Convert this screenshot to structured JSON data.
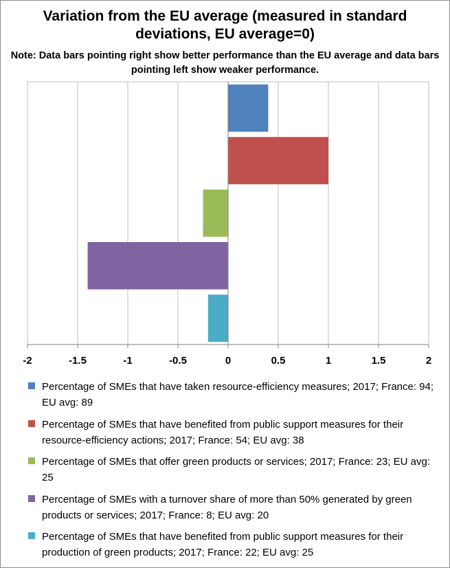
{
  "chart_data": {
    "type": "bar",
    "orientation": "horizontal",
    "title": "Variation from the EU average (measured in standard deviations, EU average=0)",
    "subtitle": "Note: Data bars pointing right show better performance than the EU average and data bars pointing left show weaker performance.",
    "xlim": [
      -2,
      2
    ],
    "x_ticks": [
      "-2",
      "-1.5",
      "-1",
      "-0.5",
      "0",
      "0.5",
      "1",
      "1.5",
      "2"
    ],
    "grid": "vertical",
    "legend_position": "bottom",
    "series": [
      {
        "name": "Percentage of SMEs that have taken resource-efficiency measures; 2017; France: 94; EU avg: 89",
        "value": 0.4,
        "color": "#4f81bd"
      },
      {
        "name": "Percentage of SMEs that have benefited from public support measures for their resource-efficiency actions; 2017; France: 54; EU avg: 38",
        "value": 1.0,
        "color": "#c0504d"
      },
      {
        "name": "Percentage of SMEs that offer green products or services; 2017; France: 23; EU avg: 25",
        "value": -0.25,
        "color": "#9bbb59"
      },
      {
        "name": "Percentage of SMEs with a turnover share of more than 50% generated by green products or services; 2017; France: 8; EU avg: 20",
        "value": -1.4,
        "color": "#8064a2"
      },
      {
        "name": "Percentage of SMEs that have benefited from public support measures for their production of green products; 2017; France: 22; EU avg: 25",
        "value": -0.2,
        "color": "#4bacc6"
      }
    ]
  }
}
